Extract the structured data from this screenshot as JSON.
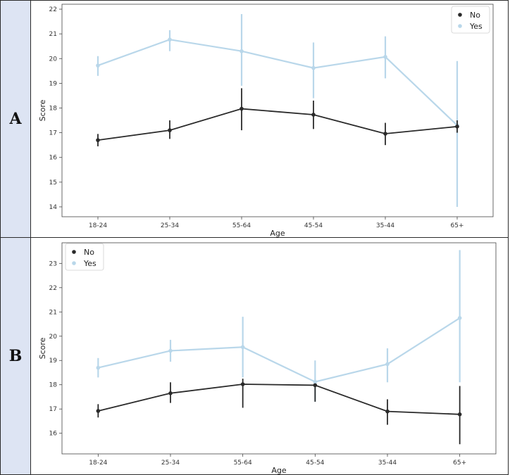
{
  "colors": {
    "no": "#2a2a2a",
    "yes": "#b9d7ea",
    "label_bg": "#dde4f3"
  },
  "chart_data": [
    {
      "panel": "A",
      "type": "line",
      "xlabel": "Age",
      "ylabel": "Score",
      "categories": [
        "18-24",
        "25-34",
        "55-64",
        "45-54",
        "35-44",
        "65+"
      ],
      "ylim": [
        13.6,
        22.2
      ],
      "yticks": [
        14,
        15,
        16,
        17,
        18,
        19,
        20,
        21,
        22
      ],
      "legend": "top-right",
      "grid": false,
      "series": [
        {
          "name": "No",
          "key": "no",
          "values": [
            16.7,
            17.1,
            17.97,
            17.73,
            16.96,
            17.25
          ],
          "err_low": [
            16.45,
            16.75,
            17.1,
            17.15,
            16.5,
            17.0
          ],
          "err_high": [
            16.95,
            17.5,
            18.8,
            18.3,
            17.4,
            17.5
          ]
        },
        {
          "name": "Yes",
          "key": "yes",
          "values": [
            19.72,
            20.77,
            20.3,
            19.62,
            20.07,
            17.3
          ],
          "err_low": [
            19.3,
            20.3,
            18.9,
            18.4,
            19.2,
            14.0
          ],
          "err_high": [
            20.1,
            21.15,
            21.8,
            20.65,
            20.9,
            19.9
          ]
        }
      ]
    },
    {
      "panel": "B",
      "type": "line",
      "xlabel": "Age",
      "ylabel": "Score",
      "categories": [
        "18-24",
        "25-34",
        "55-64",
        "45-54",
        "35-44",
        "65+"
      ],
      "ylim": [
        15.15,
        23.85
      ],
      "yticks": [
        16,
        17,
        18,
        19,
        20,
        21,
        22,
        23
      ],
      "legend": "top-left",
      "grid": false,
      "series": [
        {
          "name": "No",
          "key": "no",
          "values": [
            16.92,
            17.65,
            18.02,
            17.98,
            16.9,
            16.78
          ],
          "err_low": [
            16.65,
            17.25,
            17.05,
            17.3,
            16.35,
            15.55
          ],
          "err_high": [
            17.2,
            18.1,
            18.25,
            18.05,
            17.4,
            17.95
          ]
        },
        {
          "name": "Yes",
          "key": "yes",
          "values": [
            18.7,
            19.4,
            19.55,
            18.12,
            18.85,
            20.75
          ],
          "err_low": [
            18.3,
            18.95,
            18.3,
            17.3,
            18.1,
            18.1
          ],
          "err_high": [
            19.1,
            19.85,
            20.8,
            19.0,
            19.5,
            23.55
          ]
        }
      ]
    }
  ]
}
